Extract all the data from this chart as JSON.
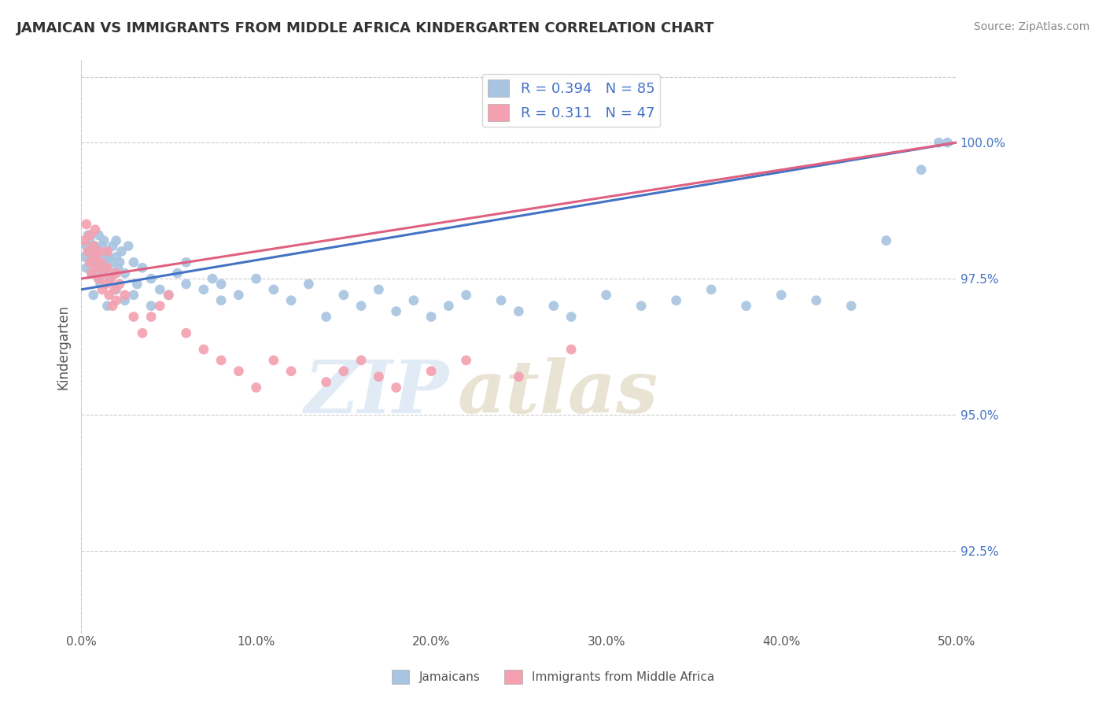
{
  "title": "JAMAICAN VS IMMIGRANTS FROM MIDDLE AFRICA KINDERGARTEN CORRELATION CHART",
  "source_text": "Source: ZipAtlas.com",
  "xlabel": "",
  "ylabel": "Kindergarten",
  "xlim": [
    0.0,
    50.0
  ],
  "ylim": [
    91.0,
    101.5
  ],
  "yticks": [
    92.5,
    95.0,
    97.5,
    100.0
  ],
  "ytick_labels": [
    "92.5%",
    "95.0%",
    "97.5%",
    "100.0%"
  ],
  "xticks": [
    0.0,
    10.0,
    20.0,
    30.0,
    40.0,
    50.0
  ],
  "xtick_labels": [
    "0.0%",
    "10.0%",
    "20.0%",
    "30.0%",
    "40.0%",
    "50.0%"
  ],
  "blue_R": 0.394,
  "blue_N": 85,
  "pink_R": 0.311,
  "pink_N": 47,
  "blue_color": "#a8c4e0",
  "pink_color": "#f4a0b0",
  "blue_line_color": "#4472c4",
  "pink_line_color": "#e06080",
  "legend_blue_label": "Jamaicans",
  "legend_pink_label": "Immigrants from Middle Africa",
  "blue_scatter_x": [
    0.2,
    0.3,
    0.3,
    0.4,
    0.4,
    0.5,
    0.5,
    0.6,
    0.6,
    0.7,
    0.8,
    0.8,
    0.9,
    1.0,
    1.0,
    1.0,
    1.1,
    1.2,
    1.2,
    1.3,
    1.3,
    1.4,
    1.5,
    1.5,
    1.6,
    1.7,
    1.8,
    1.9,
    2.0,
    2.0,
    2.1,
    2.2,
    2.3,
    2.5,
    2.7,
    3.0,
    3.2,
    3.5,
    4.0,
    4.5,
    5.0,
    5.5,
    6.0,
    7.0,
    7.5,
    8.0,
    9.0,
    10.0,
    11.0,
    12.0,
    13.0,
    14.0,
    15.0,
    16.0,
    17.0,
    18.0,
    19.0,
    20.0,
    21.0,
    22.0,
    24.0,
    25.0,
    27.0,
    28.0,
    30.0,
    32.0,
    34.0,
    36.0,
    38.0,
    40.0,
    42.0,
    44.0,
    46.0,
    48.0,
    49.0,
    0.7,
    1.1,
    1.5,
    2.0,
    2.5,
    3.0,
    4.0,
    6.0,
    8.0,
    49.5
  ],
  "blue_scatter_y": [
    97.9,
    98.1,
    97.7,
    98.0,
    98.3,
    97.8,
    98.2,
    97.6,
    98.0,
    97.9,
    98.1,
    97.7,
    98.0,
    97.5,
    97.8,
    98.3,
    97.9,
    98.1,
    97.6,
    97.8,
    98.2,
    97.7,
    97.9,
    98.0,
    97.5,
    97.8,
    98.1,
    97.6,
    97.9,
    98.2,
    97.7,
    97.8,
    98.0,
    97.6,
    98.1,
    97.8,
    97.4,
    97.7,
    97.5,
    97.3,
    97.2,
    97.6,
    97.8,
    97.3,
    97.5,
    97.4,
    97.2,
    97.5,
    97.3,
    97.1,
    97.4,
    96.8,
    97.2,
    97.0,
    97.3,
    96.9,
    97.1,
    96.8,
    97.0,
    97.2,
    97.1,
    96.9,
    97.0,
    96.8,
    97.2,
    97.0,
    97.1,
    97.3,
    97.0,
    97.2,
    97.1,
    97.0,
    98.2,
    99.5,
    100.0,
    97.2,
    97.4,
    97.0,
    97.3,
    97.1,
    97.2,
    97.0,
    97.4,
    97.1,
    100.0
  ],
  "pink_scatter_x": [
    0.2,
    0.3,
    0.4,
    0.5,
    0.5,
    0.6,
    0.7,
    0.8,
    0.8,
    0.9,
    1.0,
    1.0,
    1.1,
    1.2,
    1.3,
    1.4,
    1.5,
    1.5,
    1.6,
    1.7,
    1.8,
    1.9,
    2.0,
    2.0,
    2.2,
    2.5,
    3.0,
    3.5,
    4.0,
    4.5,
    5.0,
    6.0,
    7.0,
    8.0,
    9.0,
    10.0,
    11.0,
    12.0,
    14.0,
    15.0,
    16.0,
    17.0,
    18.0,
    20.0,
    22.0,
    25.0,
    28.0
  ],
  "pink_scatter_y": [
    98.2,
    98.5,
    98.0,
    97.8,
    98.3,
    97.6,
    98.1,
    97.9,
    98.4,
    97.7,
    98.0,
    97.5,
    97.8,
    97.3,
    97.6,
    97.4,
    97.7,
    98.0,
    97.2,
    97.5,
    97.0,
    97.3,
    97.1,
    97.6,
    97.4,
    97.2,
    96.8,
    96.5,
    96.8,
    97.0,
    97.2,
    96.5,
    96.2,
    96.0,
    95.8,
    95.5,
    96.0,
    95.8,
    95.6,
    95.8,
    96.0,
    95.7,
    95.5,
    95.8,
    96.0,
    95.7,
    96.2
  ]
}
